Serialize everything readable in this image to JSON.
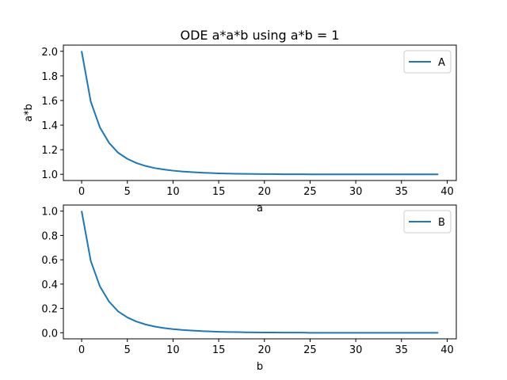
{
  "title": "ODE a*a*b using a*b = 1",
  "chart_data": [
    {
      "type": "line",
      "ylabel": "a*b",
      "xlabel": "a",
      "xlim": [
        -2,
        41
      ],
      "ylim": [
        0.95,
        2.05
      ],
      "xticks": [
        "0",
        "5",
        "10",
        "15",
        "20",
        "25",
        "30",
        "35",
        "40"
      ],
      "yticks": [
        "1.0",
        "1.2",
        "1.4",
        "1.6",
        "1.8",
        "2.0"
      ],
      "legend_position": "top-right",
      "series": [
        {
          "name": "A",
          "color": "#1f77b4",
          "x": [
            0,
            1,
            2,
            3,
            4,
            5,
            6,
            7,
            8,
            9,
            10,
            11,
            12,
            13,
            14,
            15,
            16,
            17,
            18,
            19,
            20,
            21,
            22,
            23,
            24,
            25,
            26,
            27,
            28,
            29,
            30,
            31,
            32,
            33,
            34,
            35,
            36,
            37,
            38,
            39
          ],
          "values": [
            2.0,
            1.59,
            1.381,
            1.256,
            1.175,
            1.126,
            1.092,
            1.068,
            1.051,
            1.039,
            1.03,
            1.023,
            1.018,
            1.014,
            1.011,
            1.008,
            1.006,
            1.005,
            1.004,
            1.003,
            1.002,
            1.002,
            1.001,
            1.001,
            1.001,
            1.0,
            1.0,
            1.0,
            1.0,
            1.0,
            1.0,
            1.0,
            1.0,
            1.0,
            1.0,
            1.0,
            1.0,
            1.0,
            1.0,
            1.0
          ]
        }
      ]
    },
    {
      "type": "line",
      "ylabel": "",
      "xlabel": "b",
      "xlim": [
        -2,
        41
      ],
      "ylim": [
        -0.05,
        1.05
      ],
      "xticks": [
        "0",
        "5",
        "10",
        "15",
        "20",
        "25",
        "30",
        "35",
        "40"
      ],
      "yticks": [
        "0.0",
        "0.2",
        "0.4",
        "0.6",
        "0.8",
        "1.0"
      ],
      "legend_position": "top-right",
      "series": [
        {
          "name": "B",
          "color": "#1f77b4",
          "x": [
            0,
            1,
            2,
            3,
            4,
            5,
            6,
            7,
            8,
            9,
            10,
            11,
            12,
            13,
            14,
            15,
            16,
            17,
            18,
            19,
            20,
            21,
            22,
            23,
            24,
            25,
            26,
            27,
            28,
            29,
            30,
            31,
            32,
            33,
            34,
            35,
            36,
            37,
            38,
            39
          ],
          "values": [
            1.0,
            0.59,
            0.381,
            0.256,
            0.175,
            0.126,
            0.092,
            0.068,
            0.051,
            0.039,
            0.03,
            0.023,
            0.018,
            0.014,
            0.011,
            0.008,
            0.006,
            0.005,
            0.004,
            0.003,
            0.002,
            0.002,
            0.001,
            0.001,
            0.001,
            0.0,
            0.0,
            0.0,
            0.0,
            0.0,
            0.0,
            0.0,
            0.0,
            0.0,
            0.0,
            0.0,
            0.0,
            0.0,
            0.0,
            0.0
          ]
        }
      ]
    }
  ]
}
